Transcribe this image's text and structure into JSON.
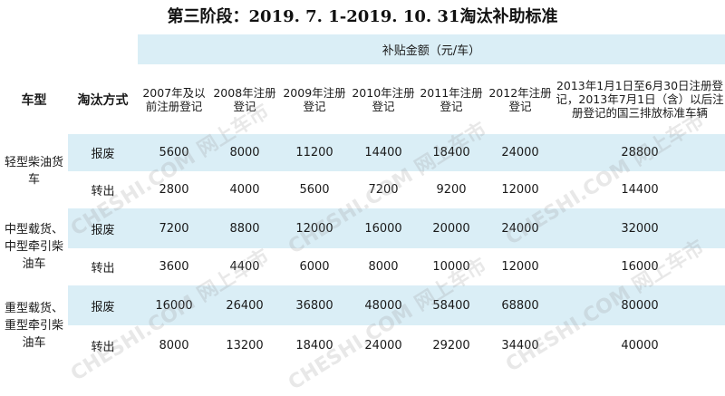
{
  "title": "第三阶段：2019. 7. 1-2019. 10. 31淘汰补助标准",
  "header": {
    "subsidy_group": "补贴金额（元/车）",
    "vehicle_type": "车型",
    "disposal_method": "淘汰方式",
    "years": [
      "2007年及以前注册登记",
      "2008年注册登记",
      "2009年注册登记",
      "2010年注册登记",
      "2011年注册登记",
      "2012年注册登记",
      "2013年1月1日至6月30日注册登记，2013年7月1日（含）以后注册登记的国三排放标准车辆"
    ]
  },
  "groups": [
    {
      "vehicle": "轻型柴油货车",
      "rows": [
        {
          "method": "报废",
          "values": [
            "5600",
            "8000",
            "11200",
            "14400",
            "18400",
            "24000",
            "28800"
          ]
        },
        {
          "method": "转出",
          "values": [
            "2800",
            "4000",
            "5600",
            "7200",
            "9200",
            "12000",
            "14400"
          ]
        }
      ]
    },
    {
      "vehicle": "中型载货、中型牵引柴油车",
      "rows": [
        {
          "method": "报废",
          "values": [
            "7200",
            "8800",
            "12000",
            "16000",
            "20000",
            "24000",
            "32000"
          ]
        },
        {
          "method": "转出",
          "values": [
            "3600",
            "4400",
            "6000",
            "8000",
            "10000",
            "12000",
            "16000"
          ]
        }
      ]
    },
    {
      "vehicle": "重型载货、重型牵引柴油车",
      "rows": [
        {
          "method": "报废",
          "values": [
            "16000",
            "26400",
            "36800",
            "48000",
            "58400",
            "68800",
            "80000"
          ]
        },
        {
          "method": "转出",
          "values": [
            "8000",
            "13200",
            "18400",
            "24000",
            "29200",
            "34400",
            "40000"
          ]
        }
      ]
    }
  ],
  "watermark": "CHESHI.COM 网上车市"
}
